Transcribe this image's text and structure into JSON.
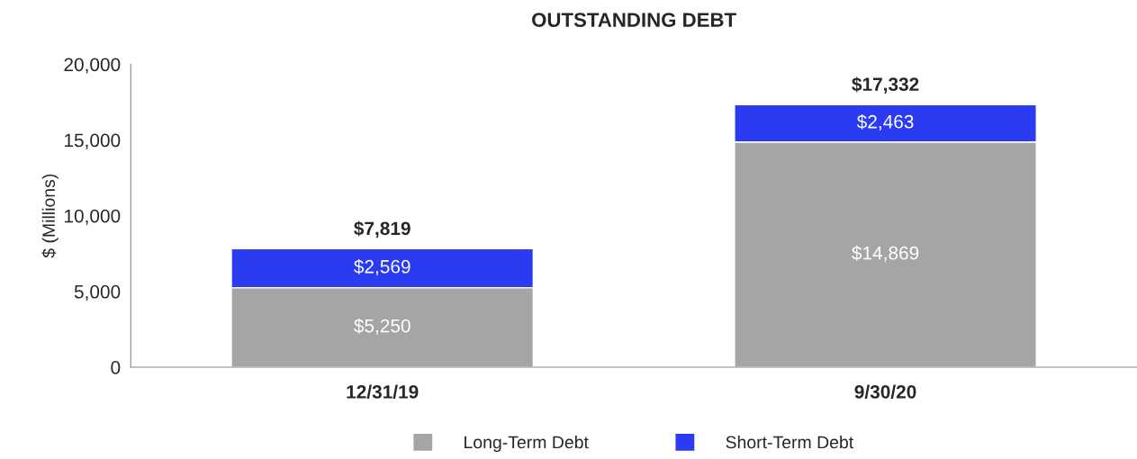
{
  "chart_data": {
    "type": "bar",
    "title": "OUTSTANDING DEBT",
    "ylabel": "$ (Millions)",
    "categories": [
      "12/31/19",
      "9/30/20"
    ],
    "stacked": true,
    "series": [
      {
        "name": "Long-Term Debt",
        "color": "#a5a5a5",
        "values": [
          5250,
          14869
        ],
        "value_labels": [
          "$5,250",
          "$14,869"
        ]
      },
      {
        "name": "Short-Term Debt",
        "color": "#2b3bf2",
        "values": [
          2569,
          2463
        ],
        "value_labels": [
          "$2,569",
          "$2,463"
        ]
      }
    ],
    "totals": [
      "$7,819",
      "$17,332"
    ],
    "ylim": [
      0,
      20000
    ],
    "yticks": [
      0,
      {
        "value": 5000,
        "label": "5,000"
      },
      {
        "value": 10000,
        "label": "10,000"
      },
      {
        "value": 15000,
        "label": "15,000"
      },
      {
        "value": 20000,
        "label": "20,000"
      }
    ],
    "grid": false,
    "legend": "bottom"
  }
}
